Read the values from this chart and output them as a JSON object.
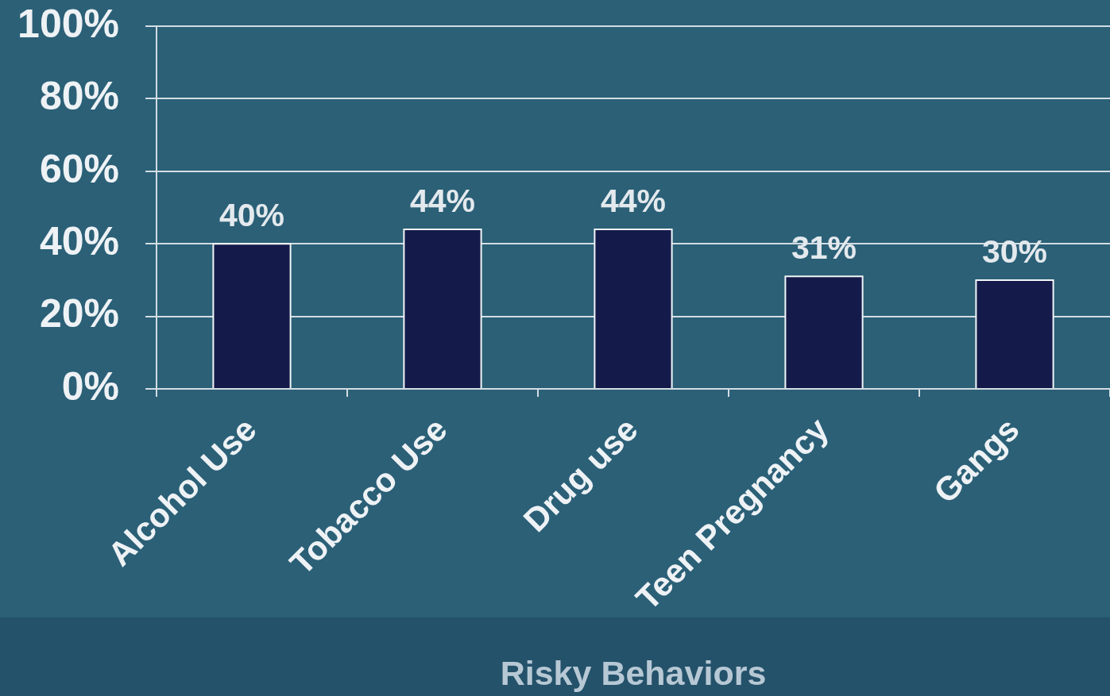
{
  "chart_data": {
    "type": "bar",
    "xlabel": "Risky Behaviors",
    "categories": [
      "Alcohol Use",
      "Tobacco Use",
      "Drug use",
      "Teen Pregnancy",
      "Gangs"
    ],
    "values": [
      40,
      44,
      44,
      31,
      30
    ],
    "color": "#141b4a",
    "value_labels": [
      "40%",
      "44%",
      "44%",
      "31%",
      "30%"
    ],
    "ylim": [
      0,
      100
    ],
    "yticks": [
      {
        "value": 0,
        "label": "0%"
      },
      {
        "value": 20,
        "label": "20%"
      },
      {
        "value": 40,
        "label": "40%"
      },
      {
        "value": 60,
        "label": "60%"
      },
      {
        "value": 80,
        "label": "80%"
      },
      {
        "value": 100,
        "label": "100%"
      }
    ],
    "grid": "y"
  }
}
